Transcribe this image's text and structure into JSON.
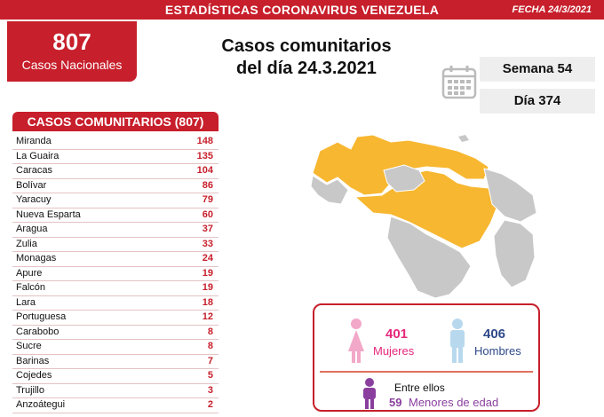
{
  "header": {
    "title": "ESTADÍSTICAS CORONAVIRUS VENEZUELA",
    "date": "FECHA 24/3/2021"
  },
  "national": {
    "count": "807",
    "label": "Casos Nacionales"
  },
  "headline": {
    "line1": "Casos comunitarios",
    "line2": "del día 24.3.2021"
  },
  "calendar_icon": "calendar-icon",
  "week": "Semana 54",
  "day": "Día 374",
  "table": {
    "header": "CASOS COMUNITARIOS (807)",
    "rows": [
      {
        "state": "Miranda",
        "cases": "148"
      },
      {
        "state": "La Guaira",
        "cases": "135"
      },
      {
        "state": "Caracas",
        "cases": "104"
      },
      {
        "state": "Bolívar",
        "cases": "86"
      },
      {
        "state": "Yaracuy",
        "cases": "79"
      },
      {
        "state": "Nueva Esparta",
        "cases": "60"
      },
      {
        "state": "Aragua",
        "cases": "37"
      },
      {
        "state": "Zulia",
        "cases": "33"
      },
      {
        "state": "Monagas",
        "cases": "24"
      },
      {
        "state": "Apure",
        "cases": "19"
      },
      {
        "state": "Falcón",
        "cases": "19"
      },
      {
        "state": "Lara",
        "cases": "18"
      },
      {
        "state": "Portuguesa",
        "cases": "12"
      },
      {
        "state": "Carabobo",
        "cases": "8"
      },
      {
        "state": "Sucre",
        "cases": "8"
      },
      {
        "state": "Barinas",
        "cases": "7"
      },
      {
        "state": "Cojedes",
        "cases": "5"
      },
      {
        "state": "Trujillo",
        "cases": "3"
      },
      {
        "state": "Anzoátegui",
        "cases": "2"
      }
    ]
  },
  "gender": {
    "women_count": "401",
    "women_label": "Mujeres",
    "men_count": "406",
    "men_label": "Hombres",
    "among_label": "Entre ellos",
    "minors_count": "59",
    "minors_label": "Menores de edad"
  },
  "colors": {
    "primary_red": "#c71f2b",
    "map_highlight": "#f7b731",
    "map_gray": "#c8c8c8",
    "women": "#e6287c",
    "men": "#2f4a8a",
    "minors": "#8a3f9e"
  }
}
